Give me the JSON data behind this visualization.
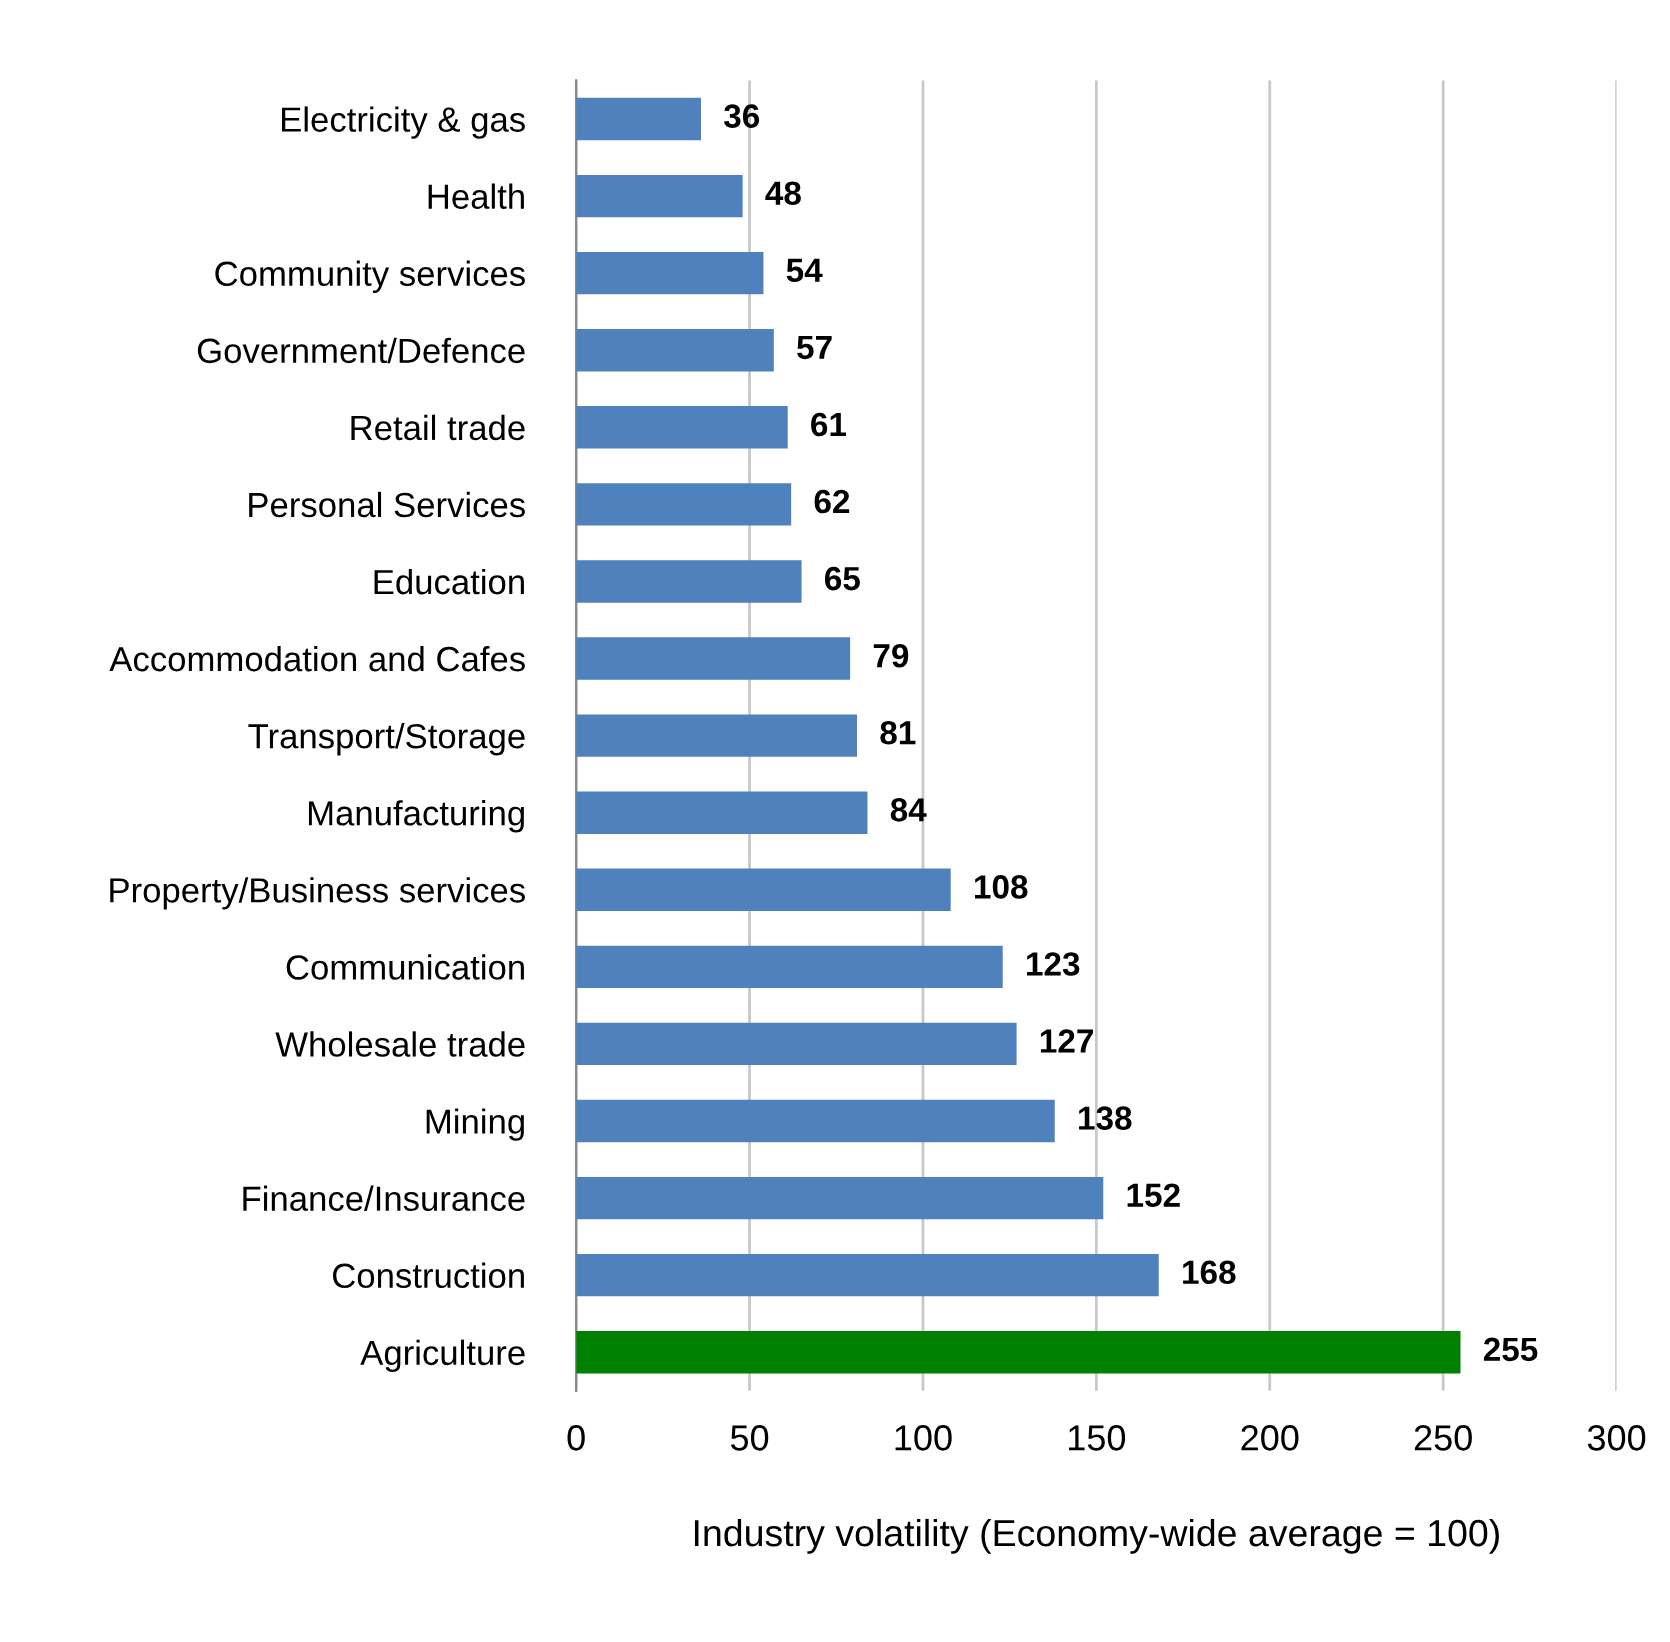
{
  "chart_data": {
    "type": "bar",
    "orientation": "horizontal",
    "xlabel": "Industry volatility (Economy-wide average = 100)",
    "categories": [
      "Electricity & gas",
      "Health",
      "Community services",
      "Government/Defence",
      "Retail trade",
      "Personal Services",
      "Education",
      "Accommodation and Cafes",
      "Transport/Storage",
      "Manufacturing",
      "Property/Business services",
      "Communication",
      "Wholesale trade",
      "Mining",
      "Finance/Insurance",
      "Construction",
      "Agriculture"
    ],
    "values": [
      36,
      48,
      54,
      57,
      61,
      62,
      65,
      79,
      81,
      84,
      108,
      123,
      127,
      138,
      152,
      168,
      255
    ],
    "colors": [
      "#4f81bd",
      "#4f81bd",
      "#4f81bd",
      "#4f81bd",
      "#4f81bd",
      "#4f81bd",
      "#4f81bd",
      "#4f81bd",
      "#4f81bd",
      "#4f81bd",
      "#4f81bd",
      "#4f81bd",
      "#4f81bd",
      "#4f81bd",
      "#4f81bd",
      "#4f81bd",
      "#008000"
    ],
    "xlim": [
      0,
      300
    ],
    "xticks": [
      0,
      50,
      100,
      150,
      200,
      250,
      300
    ],
    "grid": "x",
    "data_labels": true,
    "legend": false
  }
}
